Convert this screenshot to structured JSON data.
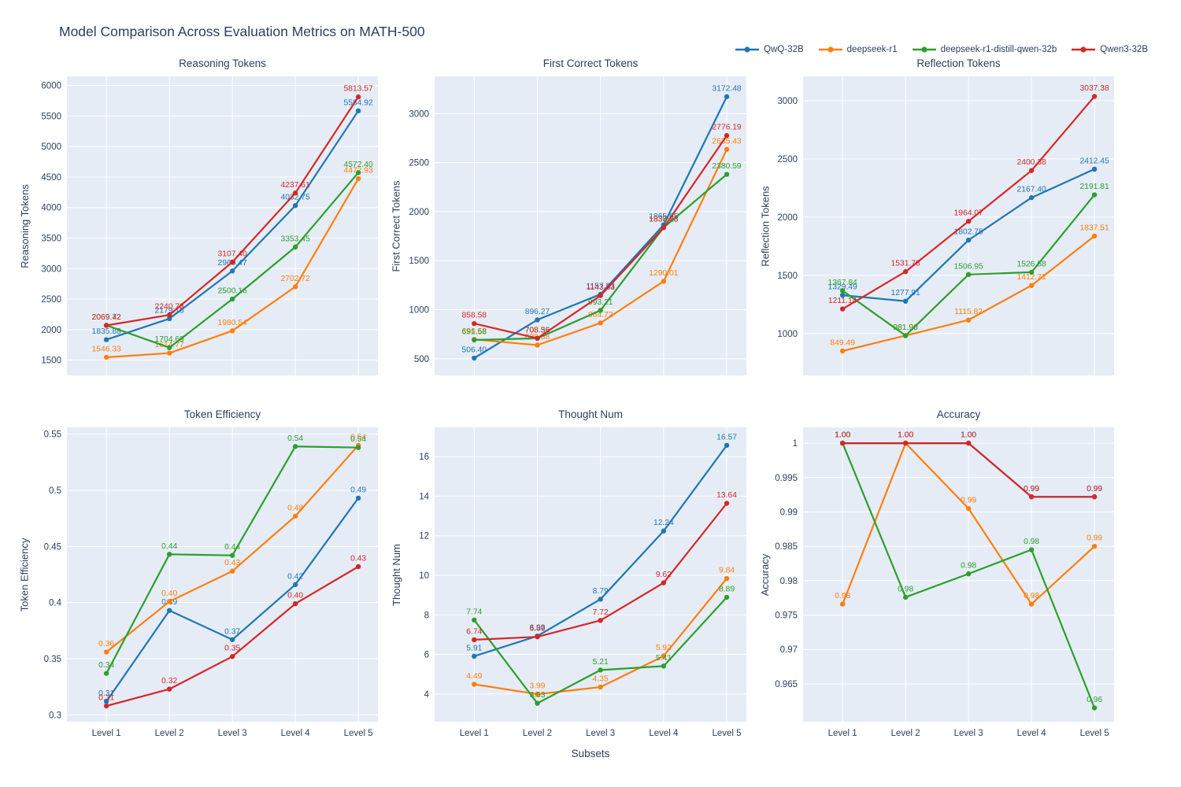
{
  "title": "Model Comparison Across Evaluation Metrics on MATH-500",
  "xlabel": "Subsets",
  "categories": [
    "Level 1",
    "Level 2",
    "Level 3",
    "Level 4",
    "Level 5"
  ],
  "colors": {
    "background": "#ffffff",
    "plot_background": "#e5ecf6",
    "grid": "#ffffff",
    "text": "#2a3f5f",
    "qwq_32b": "#1f77b4",
    "deepseek_r1": "#ff7f0e",
    "deepseek_r1_distill_qwen_32b": "#2ca02c",
    "qwen3_32b": "#d62728"
  },
  "legend": {
    "items": [
      {
        "label": "QwQ-32B",
        "color": "#1f77b4"
      },
      {
        "label": "deepseek-r1",
        "color": "#ff7f0e"
      },
      {
        "label": "deepseek-r1-distill-qwen-32b",
        "color": "#2ca02c"
      },
      {
        "label": "Qwen3-32B",
        "color": "#d62728"
      }
    ]
  },
  "chart_data": [
    {
      "type": "line",
      "title": "Reasoning Tokens",
      "ylabel": "Reasoning Tokens",
      "categories": [
        "Level 1",
        "Level 2",
        "Level 3",
        "Level 4",
        "Level 5"
      ],
      "ylim": [
        1250,
        6150
      ],
      "yticks": {
        "values": [
          1500,
          2000,
          2500,
          3000,
          3500,
          4000,
          4500,
          5000,
          5500,
          6000
        ],
        "labels": [
          "1500",
          "2000",
          "2500",
          "3000",
          "3500",
          "4000",
          "4500",
          "5000",
          "5500",
          "6000"
        ]
      },
      "label_decimals": 2,
      "show_xticklabels": false,
      "series": [
        {
          "name": "QwQ-32B",
          "color": "#1f77b4",
          "values": [
            1835.88,
            2179.18,
            2960.47,
            4032.75,
            5584.92
          ]
        },
        {
          "name": "deepseek-r1",
          "color": "#ff7f0e",
          "values": [
            1546.33,
            1614.77,
            1980.54,
            2702.72,
            4472.93
          ]
        },
        {
          "name": "deepseek-r1-distill-qwen-32b",
          "color": "#2ca02c",
          "values": [
            2069.72,
            1704.69,
            2500.16,
            3353.45,
            4572.4
          ]
        },
        {
          "name": "Qwen3-32B",
          "color": "#d62728",
          "values": [
            2069.42,
            2240.73,
            3107.4,
            4237.61,
            5813.57
          ]
        }
      ]
    },
    {
      "type": "line",
      "title": "First Correct Tokens",
      "ylabel": "First Correct Tokens",
      "categories": [
        "Level 1",
        "Level 2",
        "Level 3",
        "Level 4",
        "Level 5"
      ],
      "ylim": [
        330,
        3380
      ],
      "yticks": {
        "values": [
          500,
          1000,
          1500,
          2000,
          2500,
          3000
        ],
        "labels": [
          "500",
          "1000",
          "1500",
          "2000",
          "2500",
          "3000"
        ]
      },
      "label_decimals": 2,
      "show_xticklabels": false,
      "series": [
        {
          "name": "QwQ-32B",
          "color": "#1f77b4",
          "values": [
            506.4,
            896.27,
            1157.33,
            1865.65,
            3172.48
          ]
        },
        {
          "name": "deepseek-r1",
          "color": "#ff7f0e",
          "values": [
            696.68,
            639.38,
            864.72,
            1290.01,
            2635.43
          ]
        },
        {
          "name": "deepseek-r1-distill-qwen-32b",
          "color": "#2ca02c",
          "values": [
            691.58,
            708.36,
            993.21,
            1838.23,
            2380.59
          ]
        },
        {
          "name": "Qwen3-32B",
          "color": "#d62728",
          "values": [
            858.58,
            708.56,
            1143.83,
            1837.28,
            2776.19
          ]
        }
      ]
    },
    {
      "type": "line",
      "title": "Reflection Tokens",
      "ylabel": "Reflection Tokens",
      "categories": [
        "Level 1",
        "Level 2",
        "Level 3",
        "Level 4",
        "Level 5"
      ],
      "ylim": [
        640,
        3210
      ],
      "yticks": {
        "values": [
          1000,
          1500,
          2000,
          2500,
          3000
        ],
        "labels": [
          "1000",
          "1500",
          "2000",
          "2500",
          "3000"
        ]
      },
      "label_decimals": 2,
      "show_xticklabels": false,
      "series": [
        {
          "name": "QwQ-32B",
          "color": "#1f77b4",
          "values": [
            1329.49,
            1277.91,
            1802.75,
            2167.4,
            2412.45
          ]
        },
        {
          "name": "deepseek-r1",
          "color": "#ff7f0e",
          "values": [
            849.49,
            981.9,
            1115.82,
            1412.71,
            1837.51
          ]
        },
        {
          "name": "deepseek-r1-distill-qwen-32b",
          "color": "#2ca02c",
          "values": [
            1367.84,
            981.96,
            1506.95,
            1526.58,
            2191.81
          ]
        },
        {
          "name": "Qwen3-32B",
          "color": "#d62728",
          "values": [
            1211.14,
            1531.78,
            1964.07,
            2400.38,
            3037.38
          ]
        }
      ]
    },
    {
      "type": "line",
      "title": "Token Efficiency",
      "ylabel": "Token Efficiency",
      "categories": [
        "Level 1",
        "Level 2",
        "Level 3",
        "Level 4",
        "Level 5"
      ],
      "ylim": [
        0.294,
        0.556
      ],
      "yticks": {
        "values": [
          0.3,
          0.35,
          0.4,
          0.45,
          0.5,
          0.55
        ],
        "labels": [
          "0.3",
          "0.35",
          "0.4",
          "0.45",
          "0.5",
          "0.55"
        ]
      },
      "label_decimals": 2,
      "show_xticklabels": true,
      "series": [
        {
          "name": "QwQ-32B",
          "color": "#1f77b4",
          "values": [
            0.312,
            0.393,
            0.367,
            0.416,
            0.493
          ],
          "labels": [
            "0.31",
            "0.39",
            "0.37",
            "0.42",
            "0.49"
          ]
        },
        {
          "name": "deepseek-r1",
          "color": "#ff7f0e",
          "values": [
            0.356,
            0.401,
            0.428,
            0.477,
            0.54
          ],
          "labels": [
            "0.36",
            "0.40",
            "0.43",
            "0.48",
            "0.54"
          ]
        },
        {
          "name": "deepseek-r1-distill-qwen-32b",
          "color": "#2ca02c",
          "values": [
            0.337,
            0.443,
            0.442,
            0.539,
            0.538
          ],
          "labels": [
            "0.34",
            "0.44",
            "0.44",
            "0.54",
            "0.54"
          ]
        },
        {
          "name": "Qwen3-32B",
          "color": "#d62728",
          "values": [
            0.308,
            0.323,
            0.352,
            0.399,
            0.432
          ],
          "labels": [
            "0.31",
            "0.32",
            "0.35",
            "0.40",
            "0.43"
          ]
        }
      ]
    },
    {
      "type": "line",
      "title": "Thought Num",
      "ylabel": "Thought Num",
      "categories": [
        "Level 1",
        "Level 2",
        "Level 3",
        "Level 4",
        "Level 5"
      ],
      "ylim": [
        2.6,
        17.48
      ],
      "yticks": {
        "values": [
          4,
          6,
          8,
          10,
          12,
          14,
          16
        ],
        "labels": [
          "4",
          "6",
          "8",
          "10",
          "12",
          "14",
          "16"
        ]
      },
      "label_decimals": 2,
      "show_xticklabels": true,
      "series": [
        {
          "name": "QwQ-32B",
          "color": "#1f77b4",
          "values": [
            5.91,
            6.93,
            8.79,
            12.24,
            16.57
          ]
        },
        {
          "name": "deepseek-r1",
          "color": "#ff7f0e",
          "values": [
            4.49,
            3.99,
            4.35,
            5.92,
            9.84
          ]
        },
        {
          "name": "deepseek-r1-distill-qwen-32b",
          "color": "#2ca02c",
          "values": [
            7.74,
            3.53,
            5.21,
            5.41,
            8.89
          ]
        },
        {
          "name": "Qwen3-32B",
          "color": "#d62728",
          "values": [
            6.74,
            6.89,
            7.72,
            9.62,
            13.64
          ]
        }
      ]
    },
    {
      "type": "line",
      "title": "Accuracy",
      "ylabel": "Accuracy",
      "categories": [
        "Level 1",
        "Level 2",
        "Level 3",
        "Level 4",
        "Level 5"
      ],
      "ylim": [
        0.9595,
        1.0023
      ],
      "yticks": {
        "values": [
          0.965,
          0.97,
          0.975,
          0.98,
          0.985,
          0.99,
          0.995,
          1
        ],
        "labels": [
          "0.965",
          "0.97",
          "0.975",
          "0.98",
          "0.985",
          "0.99",
          "0.995",
          "1"
        ]
      },
      "label_decimals": 2,
      "show_xticklabels": true,
      "series": [
        {
          "name": "QwQ-32B",
          "color": "#1f77b4",
          "values": [
            1.0,
            1.0,
            1.0,
            0.9922,
            0.9922
          ],
          "labels": [
            "1.00",
            "1.00",
            "1.00",
            "0.99",
            "0.99"
          ]
        },
        {
          "name": "deepseek-r1",
          "color": "#ff7f0e",
          "values": [
            0.9766,
            1.0,
            0.9905,
            0.9766,
            0.985
          ],
          "labels": [
            "0.98",
            "1.00",
            "0.99",
            "0.98",
            "0.99"
          ]
        },
        {
          "name": "deepseek-r1-distill-qwen-32b",
          "color": "#2ca02c",
          "values": [
            1.0,
            0.9776,
            0.981,
            0.9845,
            0.9615
          ],
          "labels": [
            "1.00",
            "0.98",
            "0.98",
            "0.98",
            "0.96"
          ]
        },
        {
          "name": "Qwen3-32B",
          "color": "#d62728",
          "values": [
            1.0,
            1.0,
            1.0,
            0.9922,
            0.9922
          ],
          "labels": [
            "1.00",
            "1.00",
            "1.00",
            "0.99",
            "0.99"
          ]
        }
      ]
    }
  ]
}
